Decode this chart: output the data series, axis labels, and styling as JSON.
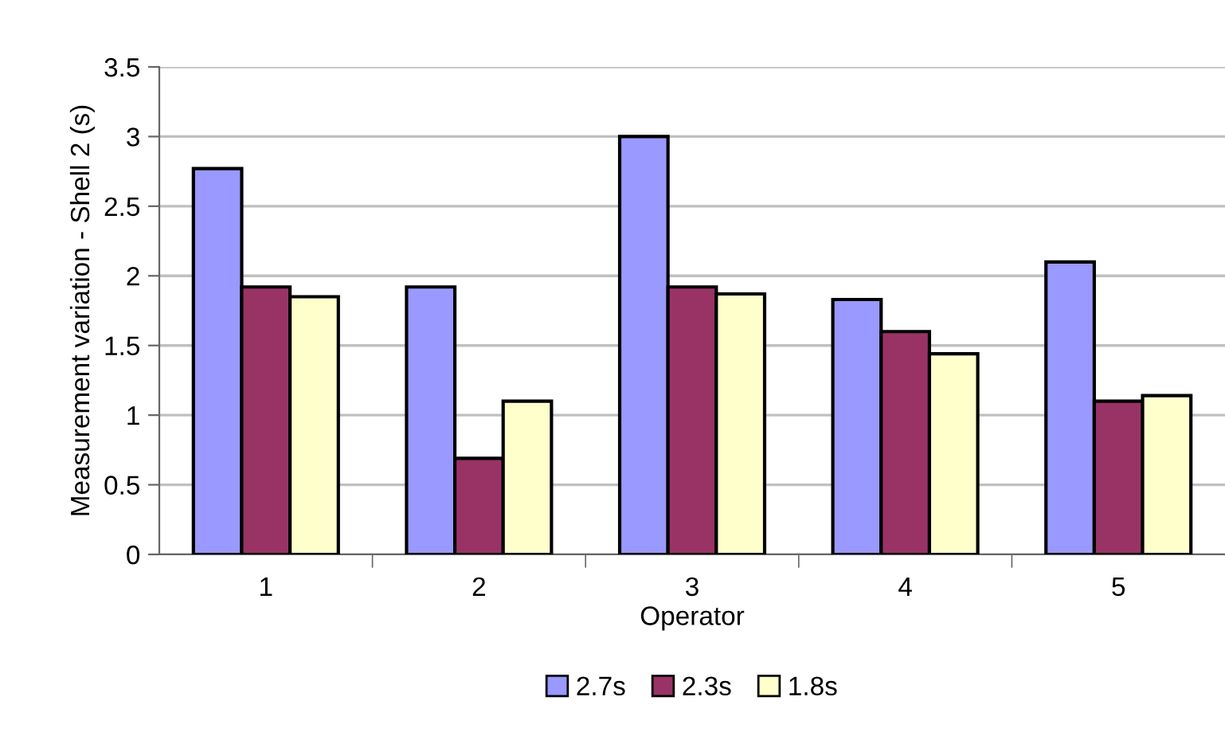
{
  "chart_data": {
    "type": "bar",
    "xlabel": "Operator",
    "ylabel": "Measurement variation - Shell 2 (s)",
    "categories": [
      "1",
      "2",
      "3",
      "4",
      "5"
    ],
    "series": [
      {
        "name": "2.7s",
        "color": "#9999ff",
        "values": [
          2.77,
          1.92,
          3.0,
          1.83,
          2.1
        ]
      },
      {
        "name": "2.3s",
        "color": "#993366",
        "values": [
          1.92,
          0.69,
          1.92,
          1.6,
          1.1
        ]
      },
      {
        "name": "1.8s",
        "color": "#ffffcc",
        "values": [
          1.85,
          1.1,
          1.87,
          1.44,
          1.14
        ]
      }
    ],
    "ylim": [
      0,
      3.5
    ],
    "yticks": [
      0,
      0.5,
      1,
      1.5,
      2,
      2.5,
      3,
      3.5
    ],
    "grid": "y",
    "legend": "bottom"
  }
}
